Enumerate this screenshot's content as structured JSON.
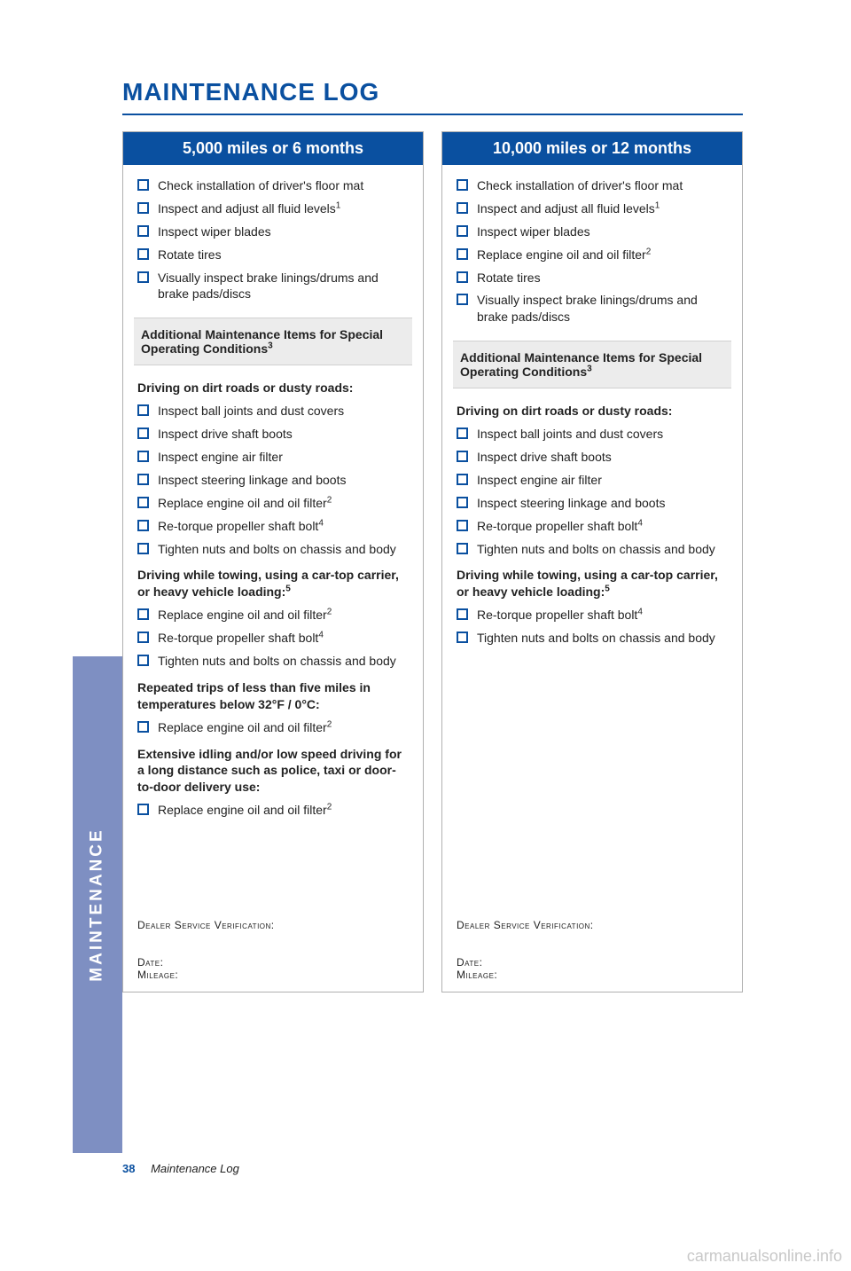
{
  "title": "MAINTENANCE LOG",
  "sidebar": {
    "label": "MAINTENANCE"
  },
  "footer": {
    "page": "38",
    "section": "Maintenance Log"
  },
  "watermark": "carmanualsonline.info",
  "additional_box_label": "Additional Maintenance Items for Special Operating Conditions",
  "additional_box_sup": "3",
  "verify_label": "Dealer Service Verification:",
  "date_label": "Date:",
  "mileage_label": "Mileage:",
  "columns": [
    {
      "header": "5,000 miles or 6 months",
      "primary": [
        {
          "text": "Check installation of driver's floor mat"
        },
        {
          "text": "Inspect and adjust all fluid levels",
          "sup": "1"
        },
        {
          "text": "Inspect wiper blades"
        },
        {
          "text": "Rotate tires"
        },
        {
          "text": "Visually inspect brake linings/drums and brake pads/discs"
        }
      ],
      "conditions": [
        {
          "heading": "Driving on dirt roads or dusty roads:",
          "items": [
            {
              "text": "Inspect ball joints and dust covers"
            },
            {
              "text": "Inspect drive shaft boots"
            },
            {
              "text": "Inspect engine air filter"
            },
            {
              "text": "Inspect steering linkage and boots"
            },
            {
              "text": "Replace engine oil and oil filter",
              "sup": "2"
            },
            {
              "text": "Re-torque propeller shaft bolt",
              "sup": "4"
            },
            {
              "text": "Tighten nuts and bolts on chassis and body"
            }
          ]
        },
        {
          "heading": "Driving while towing, using a car-top carrier, or heavy vehicle loading:",
          "heading_sup": "5",
          "items": [
            {
              "text": "Replace engine oil and oil filter",
              "sup": "2"
            },
            {
              "text": "Re-torque propeller shaft bolt",
              "sup": "4"
            },
            {
              "text": "Tighten nuts and bolts on chassis and body"
            }
          ]
        },
        {
          "heading": "Repeated trips of less than five miles in temperatures below 32°F / 0°C:",
          "items": [
            {
              "text": "Replace engine oil and oil filter",
              "sup": "2"
            }
          ]
        },
        {
          "heading": "Extensive idling and/or low speed driving for a long distance such as police, taxi or door-to-door delivery use:",
          "items": [
            {
              "text": "Replace engine oil and oil filter",
              "sup": "2"
            }
          ]
        }
      ]
    },
    {
      "header": "10,000 miles or 12 months",
      "primary": [
        {
          "text": "Check installation of driver's floor mat"
        },
        {
          "text": "Inspect and adjust all fluid levels",
          "sup": "1"
        },
        {
          "text": "Inspect wiper blades"
        },
        {
          "text": "Replace engine oil and oil filter",
          "sup": "2"
        },
        {
          "text": "Rotate tires"
        },
        {
          "text": "Visually inspect brake linings/drums and brake pads/discs"
        }
      ],
      "conditions": [
        {
          "heading": "Driving on dirt roads or dusty roads:",
          "items": [
            {
              "text": "Inspect ball joints and dust covers"
            },
            {
              "text": "Inspect drive shaft boots"
            },
            {
              "text": "Inspect engine air filter"
            },
            {
              "text": "Inspect steering linkage and boots"
            },
            {
              "text": "Re-torque propeller shaft bolt",
              "sup": "4"
            },
            {
              "text": "Tighten nuts and bolts on chassis and body"
            }
          ]
        },
        {
          "heading": "Driving while towing, using a car-top carrier, or heavy vehicle loading:",
          "heading_sup": "5",
          "items": [
            {
              "text": "Re-torque propeller shaft bolt",
              "sup": "4"
            },
            {
              "text": "Tighten nuts and bolts on chassis and body"
            }
          ]
        }
      ]
    }
  ]
}
